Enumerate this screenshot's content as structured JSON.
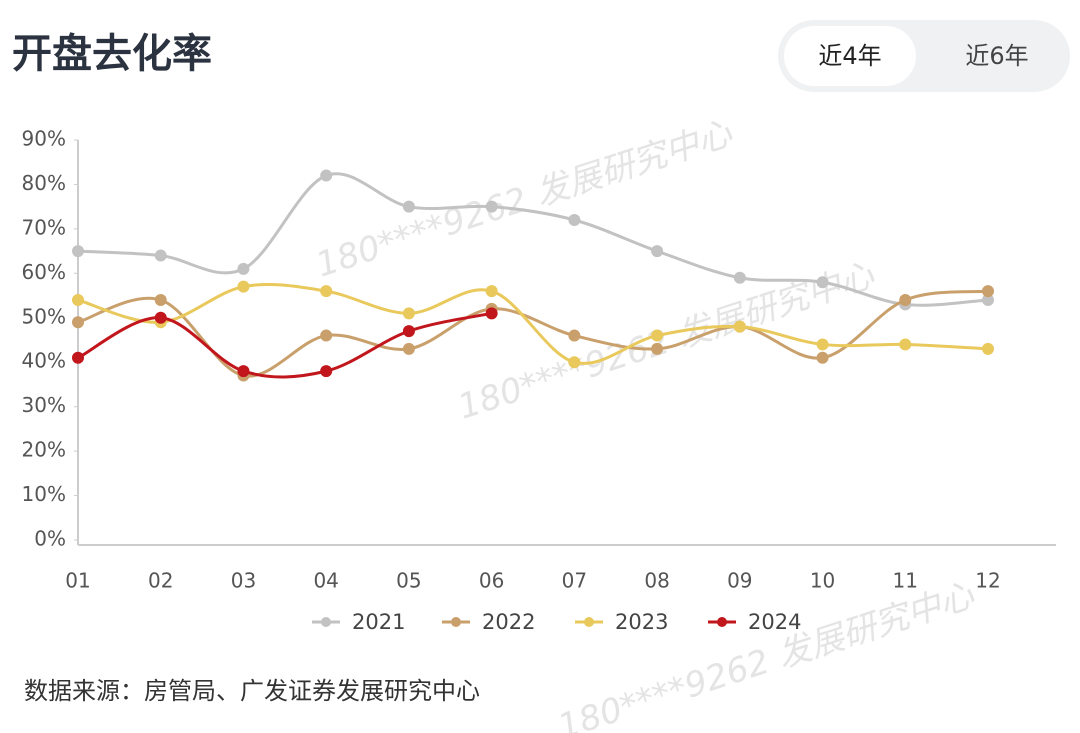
{
  "tabs": [
    "近4年",
    "近6年"
  ],
  "chart_data": {
    "type": "line",
    "title": "开盘去化率",
    "source": "数据来源：房管局、广发证券发展研究中心",
    "watermark": "180****9262 发展研究中心",
    "categories": [
      "01",
      "02",
      "03",
      "04",
      "05",
      "06",
      "07",
      "08",
      "09",
      "10",
      "11",
      "12"
    ],
    "series": [
      {
        "name": "2021",
        "color": "#c2c2c2",
        "values": [
          65,
          64,
          61,
          82,
          75,
          75,
          72,
          65,
          59,
          58,
          53,
          54
        ]
      },
      {
        "name": "2022",
        "color": "#c9a06b",
        "values": [
          49,
          54,
          37,
          46,
          43,
          52,
          46,
          43,
          48,
          41,
          54,
          56
        ]
      },
      {
        "name": "2023",
        "color": "#e9c95c",
        "values": [
          54,
          49,
          57,
          56,
          51,
          56,
          40,
          46,
          48,
          44,
          44,
          43
        ]
      },
      {
        "name": "2024",
        "color": "#c1161c",
        "values": [
          41,
          50,
          38,
          38,
          47,
          51,
          null,
          null,
          null,
          null,
          null,
          null
        ]
      }
    ],
    "ylim": [
      0,
      90
    ],
    "yticks": [
      {
        "value": 0,
        "label": "0%"
      },
      {
        "value": 10,
        "label": "10%"
      },
      {
        "value": 20,
        "label": "20%"
      },
      {
        "value": 30,
        "label": "30%"
      },
      {
        "value": 40,
        "label": "40%"
      },
      {
        "value": 50,
        "label": "50%"
      },
      {
        "value": 60,
        "label": "60%"
      },
      {
        "value": 70,
        "label": "70%"
      },
      {
        "value": 80,
        "label": "80%"
      },
      {
        "value": 90,
        "label": "90%"
      }
    ],
    "grid": false,
    "legend": "bottom"
  }
}
